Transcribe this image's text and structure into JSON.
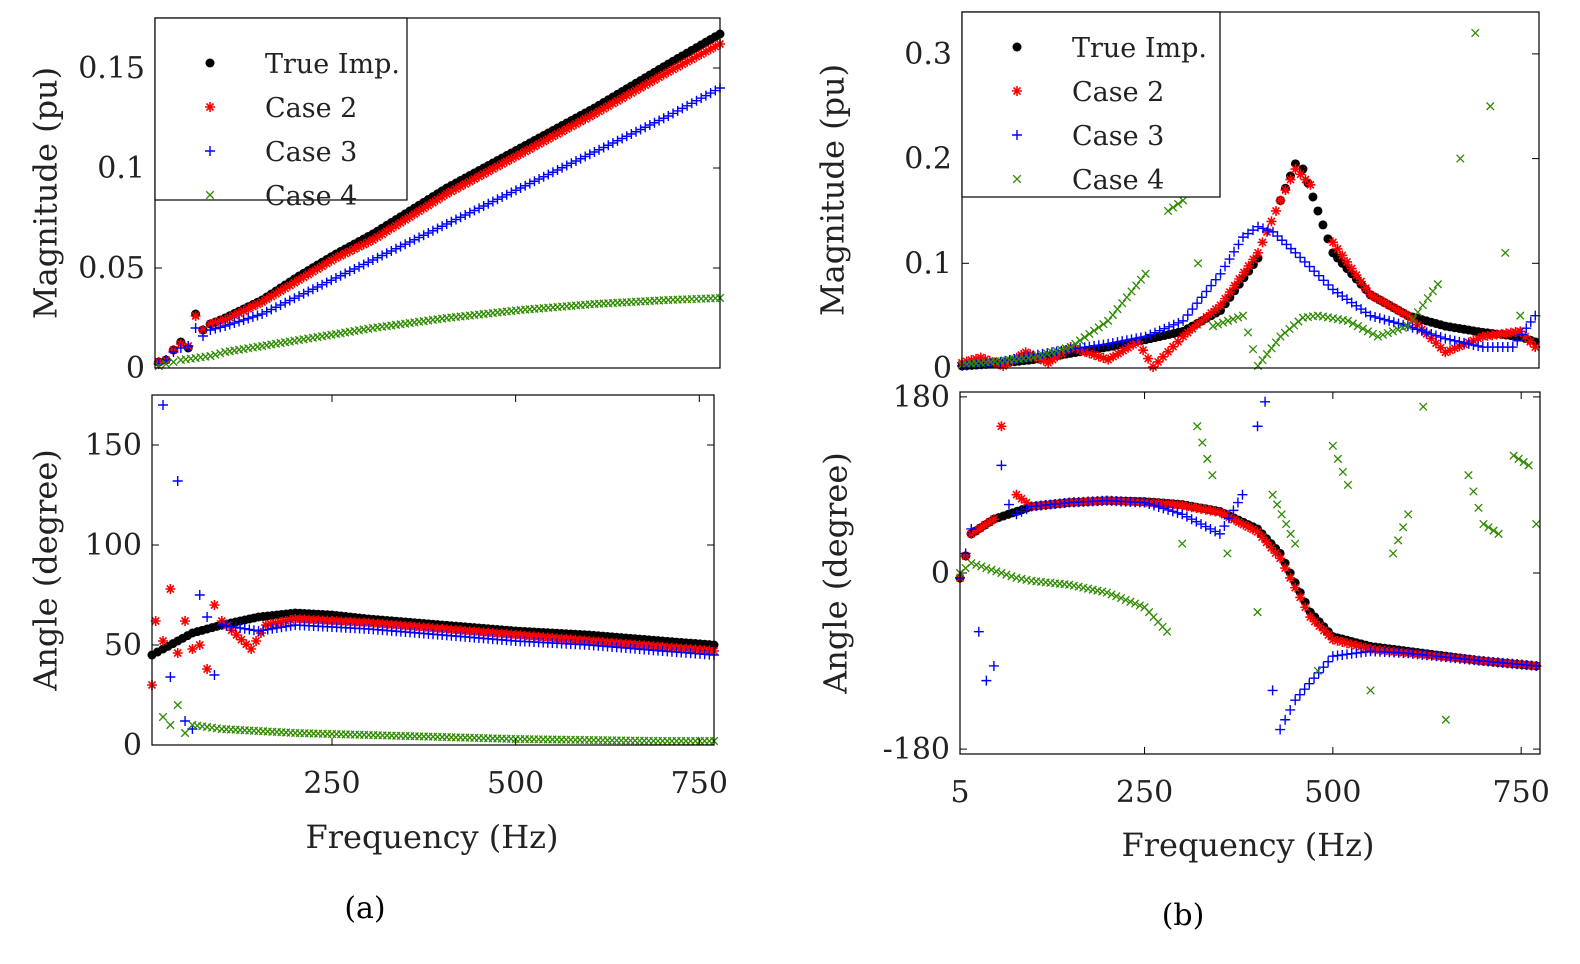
{
  "figure": {
    "panel_labels": [
      "(a)",
      "(b)"
    ],
    "legend": [
      {
        "label": "True Imp.",
        "marker": "dot",
        "color": "#000000"
      },
      {
        "label": "Case 2",
        "marker": "star",
        "color": "#ff0000"
      },
      {
        "label": "Case 3",
        "marker": "plus",
        "color": "#0000ff"
      },
      {
        "label": "Case 4",
        "marker": "cross",
        "color": "#2e8b00"
      }
    ],
    "xlabel": "Frequency (Hz)"
  },
  "chart_data": [
    {
      "id": "a-magnitude",
      "type": "scatter",
      "ylabel": "Magnitude (pu)",
      "xlim": [
        5,
        770
      ],
      "ylim": [
        0,
        0.175
      ],
      "xticks": [],
      "yticks": [
        0,
        0.05,
        0.1,
        0.15
      ],
      "ytick_labels": [
        "0",
        "0.05",
        "0.1",
        "0.15"
      ],
      "legend_position": "top-left",
      "series": [
        {
          "name": "True Imp.",
          "x": [
            10,
            20,
            30,
            40,
            50,
            60,
            70,
            80,
            100,
            150,
            200,
            250,
            300,
            400,
            500,
            600,
            700,
            770
          ],
          "y": [
            0.003,
            0.004,
            0.009,
            0.013,
            0.01,
            0.027,
            0.019,
            0.022,
            0.025,
            0.034,
            0.046,
            0.057,
            0.067,
            0.09,
            0.11,
            0.13,
            0.152,
            0.167
          ]
        },
        {
          "name": "Case 2",
          "x": [
            10,
            20,
            30,
            40,
            50,
            60,
            70,
            80,
            100,
            150,
            200,
            250,
            300,
            400,
            500,
            600,
            700,
            770
          ],
          "y": [
            0.003,
            0.004,
            0.009,
            0.012,
            0.011,
            0.026,
            0.019,
            0.022,
            0.024,
            0.033,
            0.044,
            0.055,
            0.064,
            0.087,
            0.107,
            0.127,
            0.148,
            0.162
          ]
        },
        {
          "name": "Case 3",
          "x": [
            10,
            20,
            30,
            40,
            50,
            60,
            70,
            80,
            100,
            150,
            200,
            250,
            300,
            400,
            500,
            600,
            700,
            770
          ],
          "y": [
            0.002,
            0.004,
            0.008,
            0.01,
            0.011,
            0.02,
            0.016,
            0.019,
            0.021,
            0.027,
            0.036,
            0.045,
            0.054,
            0.072,
            0.09,
            0.108,
            0.126,
            0.14
          ]
        },
        {
          "name": "Case 4",
          "x": [
            10,
            20,
            30,
            40,
            60,
            80,
            100,
            150,
            200,
            250,
            300,
            400,
            500,
            600,
            700,
            770
          ],
          "y": [
            0.001,
            0.002,
            0.003,
            0.004,
            0.005,
            0.006,
            0.008,
            0.011,
            0.014,
            0.017,
            0.02,
            0.025,
            0.029,
            0.032,
            0.034,
            0.035
          ]
        }
      ]
    },
    {
      "id": "a-angle",
      "type": "scatter",
      "ylabel": "Angle (degree)",
      "xlim": [
        5,
        770
      ],
      "ylim": [
        0,
        175
      ],
      "xticks": [
        250,
        500,
        750
      ],
      "xtick_labels": [
        "250",
        "500",
        "750"
      ],
      "yticks": [
        0,
        50,
        100,
        150
      ],
      "ytick_labels": [
        "0",
        "50",
        "100",
        "150"
      ],
      "series": [
        {
          "name": "True Imp.",
          "x": [
            5,
            20,
            40,
            60,
            80,
            100,
            150,
            200,
            250,
            300,
            400,
            500,
            600,
            700,
            770
          ],
          "y": [
            45,
            48,
            52,
            56,
            58,
            60,
            64,
            66,
            65,
            63,
            60,
            57,
            55,
            52,
            50
          ]
        },
        {
          "name": "Case 2",
          "x": [
            5,
            10,
            20,
            30,
            40,
            50,
            60,
            70,
            80,
            90,
            100,
            120,
            140,
            160,
            200,
            300,
            400,
            500,
            600,
            700,
            770
          ],
          "y": [
            30,
            62,
            52,
            78,
            46,
            62,
            48,
            50,
            38,
            70,
            62,
            55,
            48,
            60,
            63,
            61,
            58,
            55,
            52,
            49,
            47
          ]
        },
        {
          "name": "Case 3",
          "x": [
            20,
            30,
            40,
            50,
            60,
            70,
            80,
            90,
            100,
            150,
            200,
            300,
            400,
            500,
            600,
            700,
            770
          ],
          "y": [
            170,
            34,
            132,
            12,
            8,
            75,
            64,
            35,
            60,
            57,
            60,
            58,
            55,
            52,
            50,
            47,
            45
          ]
        },
        {
          "name": "Case 4",
          "x": [
            20,
            30,
            40,
            50,
            60,
            80,
            100,
            150,
            200,
            300,
            400,
            500,
            600,
            700,
            770
          ],
          "y": [
            14,
            10,
            20,
            6,
            10,
            9,
            8,
            7,
            6,
            5,
            4,
            3,
            2.5,
            2,
            2
          ]
        }
      ]
    },
    {
      "id": "b-magnitude",
      "type": "scatter",
      "ylabel": "Magnitude (pu)",
      "xlim": [
        5,
        775
      ],
      "ylim": [
        0,
        0.34
      ],
      "xticks": [],
      "yticks": [
        0,
        0.1,
        0.2,
        0.3
      ],
      "ytick_labels": [
        "0",
        "0.1",
        "0.2",
        "0.3"
      ],
      "legend_position": "top-left",
      "series": [
        {
          "name": "True Imp.",
          "x": [
            5,
            50,
            100,
            150,
            200,
            250,
            300,
            350,
            400,
            430,
            450,
            460,
            480,
            500,
            550,
            600,
            650,
            700,
            750,
            770
          ],
          "y": [
            0.002,
            0.004,
            0.008,
            0.014,
            0.02,
            0.027,
            0.035,
            0.055,
            0.105,
            0.16,
            0.195,
            0.19,
            0.15,
            0.11,
            0.07,
            0.05,
            0.04,
            0.034,
            0.03,
            0.025
          ]
        },
        {
          "name": "Case 2",
          "x": [
            5,
            30,
            60,
            90,
            120,
            150,
            200,
            240,
            260,
            300,
            350,
            400,
            430,
            450,
            470,
            500,
            550,
            600,
            650,
            700,
            750,
            770
          ],
          "y": [
            0.005,
            0.01,
            0.002,
            0.015,
            0.005,
            0.02,
            0.008,
            0.025,
            0.001,
            0.03,
            0.06,
            0.11,
            0.16,
            0.19,
            0.175,
            0.12,
            0.07,
            0.05,
            0.015,
            0.03,
            0.035,
            0.02
          ]
        },
        {
          "name": "Case 3",
          "x": [
            5,
            50,
            100,
            150,
            200,
            250,
            300,
            350,
            380,
            400,
            420,
            450,
            500,
            550,
            600,
            650,
            700,
            740,
            770
          ],
          "y": [
            0.002,
            0.005,
            0.012,
            0.018,
            0.023,
            0.03,
            0.045,
            0.09,
            0.125,
            0.135,
            0.13,
            0.11,
            0.075,
            0.05,
            0.04,
            0.028,
            0.02,
            0.02,
            0.05
          ]
        },
        {
          "name": "Case 4",
          "x": [
            5,
            100,
            150,
            200,
            250,
            280,
            300,
            320,
            340,
            380,
            400,
            430,
            460,
            480,
            520,
            560,
            600,
            640,
            670,
            690,
            710,
            730,
            750
          ],
          "y": [
            0.003,
            0.01,
            0.02,
            0.045,
            0.09,
            0.15,
            0.16,
            0.1,
            0.04,
            0.05,
            0.002,
            0.03,
            0.048,
            0.05,
            0.045,
            0.03,
            0.04,
            0.08,
            0.2,
            0.32,
            0.25,
            0.11,
            0.05
          ]
        }
      ]
    },
    {
      "id": "b-angle",
      "type": "scatter",
      "ylabel": "Angle (degree)",
      "xlim": [
        5,
        775
      ],
      "ylim": [
        -185,
        185
      ],
      "xticks": [
        5,
        250,
        500,
        750
      ],
      "xtick_labels": [
        "5",
        "250",
        "500",
        "750"
      ],
      "yticks": [
        -180,
        0,
        180
      ],
      "ytick_labels": [
        "-180",
        "0",
        "180"
      ],
      "series": [
        {
          "name": "True Imp.",
          "x": [
            5,
            20,
            50,
            100,
            150,
            200,
            250,
            300,
            350,
            400,
            430,
            450,
            470,
            500,
            550,
            600,
            650,
            700,
            770
          ],
          "y": [
            -5,
            40,
            55,
            68,
            72,
            74,
            73,
            70,
            63,
            45,
            20,
            -10,
            -40,
            -65,
            -75,
            -80,
            -85,
            -90,
            -95
          ]
        },
        {
          "name": "Case 2",
          "x": [
            5,
            20,
            50,
            60,
            80,
            100,
            150,
            200,
            250,
            300,
            350,
            400,
            430,
            450,
            470,
            500,
            550,
            600,
            650,
            700,
            770
          ],
          "y": [
            -5,
            40,
            55,
            150,
            80,
            68,
            72,
            74,
            72,
            69,
            62,
            42,
            15,
            -15,
            -45,
            -68,
            -78,
            -82,
            -86,
            -90,
            -95
          ]
        },
        {
          "name": "Case 3",
          "x": [
            5,
            20,
            30,
            40,
            50,
            60,
            70,
            80,
            100,
            150,
            200,
            250,
            300,
            350,
            380,
            400,
            410,
            420,
            430,
            450,
            500,
            550,
            600,
            650,
            700,
            770
          ],
          "y": [
            -5,
            45,
            -60,
            -110,
            -95,
            110,
            70,
            60,
            68,
            72,
            74,
            72,
            60,
            40,
            80,
            150,
            175,
            -120,
            -160,
            -130,
            -85,
            -80,
            -82,
            -86,
            -90,
            -95
          ]
        },
        {
          "name": "Case 4",
          "x": [
            5,
            20,
            40,
            60,
            80,
            100,
            150,
            200,
            250,
            280,
            300,
            320,
            340,
            360,
            400,
            420,
            450,
            480,
            500,
            520,
            550,
            580,
            600,
            620,
            650,
            680,
            700,
            720,
            740,
            760,
            770
          ],
          "y": [
            0,
            10,
            5,
            0,
            -5,
            -8,
            -12,
            -20,
            -35,
            -60,
            30,
            150,
            100,
            20,
            -40,
            80,
            30,
            -100,
            130,
            90,
            -120,
            20,
            60,
            170,
            -150,
            100,
            50,
            40,
            120,
            110,
            50
          ]
        }
      ]
    }
  ]
}
